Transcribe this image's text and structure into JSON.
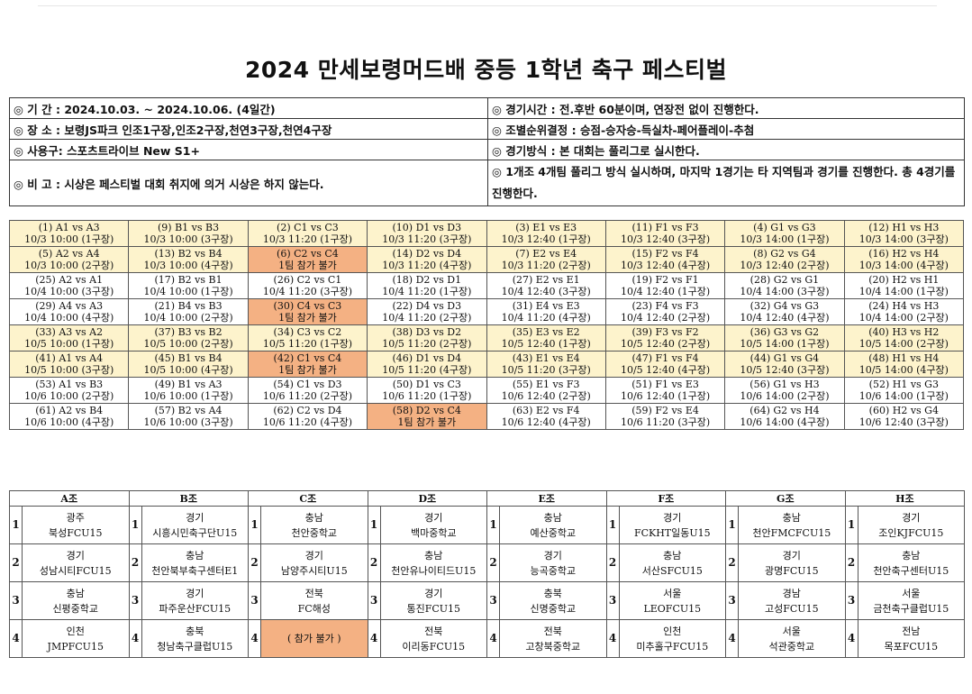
{
  "title": "2024 만세보령머드배 중등 1학년 축구 페스티벌",
  "info": {
    "period": "◎ 기 간 : 2024.10.03. ~ 2024.10.06. (4일간)",
    "venue": "◎ 장 소 : 보령JS파크 인조1구장,인조2구장,천연3구장,천연4구장",
    "ball": "◎ 사용구: 스포츠트라이브 New S1+",
    "note": "◎ 비 고 : 시상은 페스티벌 대회 취지에 의거 시상은 하지 않는다.",
    "match_time": "◎ 경기시간 : 전.후반 60분이며, 연장전 없이 진행한다.",
    "ranking": "◎ 조별순위결정 : 승점-승자승-득실차-페어플레이-추첨",
    "format": "◎ 경기방식 : 본 대회는 풀리그로 실시한다.",
    "group_rule": "◎ 1개조 4개팀 풀리그 방식 실시하며, 마지막 1경기는 타 지역팀과 경기를 진행한다. 총 4경기를 진행한다."
  },
  "schedule": [
    [
      {
        "l1": "(1) A1 vs A3",
        "l2": "10/3 10:00 (1구장)",
        "c": "y"
      },
      {
        "l1": "(9) B1 vs B3",
        "l2": "10/3 10:00 (3구장)",
        "c": "y"
      },
      {
        "l1": "(2) C1 vs C3",
        "l2": "10/3 11:20 (1구장)",
        "c": "y"
      },
      {
        "l1": "(10) D1 vs D3",
        "l2": "10/3 11:20 (3구장)",
        "c": "y"
      },
      {
        "l1": "(3) E1 vs E3",
        "l2": "10/3 12:40 (1구장)",
        "c": "y"
      },
      {
        "l1": "(11) F1 vs F3",
        "l2": "10/3 12:40 (3구장)",
        "c": "y"
      },
      {
        "l1": "(4) G1 vs G3",
        "l2": "10/3 14:00 (1구장)",
        "c": "y"
      },
      {
        "l1": "(12) H1 vs H3",
        "l2": "10/3 14:00 (3구장)",
        "c": "y"
      }
    ],
    [
      {
        "l1": "(5) A2 vs A4",
        "l2": "10/3 10:00 (2구장)",
        "c": "y"
      },
      {
        "l1": "(13) B2 vs B4",
        "l2": "10/3 10:00 (4구장)",
        "c": "y"
      },
      {
        "l1": "(6) C2 vs C4",
        "l2": "1팀 참가 불가",
        "c": "o"
      },
      {
        "l1": "(14) D2 vs D4",
        "l2": "10/3 11:20 (4구장)",
        "c": "y"
      },
      {
        "l1": "(7) E2 vs E4",
        "l2": "10/3 11:20 (2구장)",
        "c": "y"
      },
      {
        "l1": "(15) F2 vs F4",
        "l2": "10/3 12:40 (4구장)",
        "c": "y"
      },
      {
        "l1": "(8) G2 vs G4",
        "l2": "10/3 12:40 (2구장)",
        "c": "y"
      },
      {
        "l1": "(16) H2 vs H4",
        "l2": "10/3 14:00 (4구장)",
        "c": "y"
      }
    ],
    [
      {
        "l1": "(25) A2 vs A1",
        "l2": "10/4 10:00 (3구장)",
        "c": "w"
      },
      {
        "l1": "(17) B2 vs B1",
        "l2": "10/4 10:00 (1구장)",
        "c": "w"
      },
      {
        "l1": "(26) C2 vs C1",
        "l2": "10/4 11:20 (3구장)",
        "c": "w"
      },
      {
        "l1": "(18) D2 vs D1",
        "l2": "10/4 11:20 (1구장)",
        "c": "w"
      },
      {
        "l1": "(27) E2 vs E1",
        "l2": "10/4 12:40 (3구장)",
        "c": "w"
      },
      {
        "l1": "(19) F2 vs F1",
        "l2": "10/4 12:40 (1구장)",
        "c": "w"
      },
      {
        "l1": "(28) G2 vs G1",
        "l2": "10/4 14:00 (3구장)",
        "c": "w"
      },
      {
        "l1": "(20) H2 vs H1",
        "l2": "10/4 14:00 (1구장)",
        "c": "w"
      }
    ],
    [
      {
        "l1": "(29) A4 vs A3",
        "l2": "10/4 10:00 (4구장)",
        "c": "w"
      },
      {
        "l1": "(21) B4 vs B3",
        "l2": "10/4 10:00 (2구장)",
        "c": "w"
      },
      {
        "l1": "(30) C4 vs C3",
        "l2": "1팀 참가 불가",
        "c": "o"
      },
      {
        "l1": "(22) D4 vs D3",
        "l2": "10/4 11:20 (2구장)",
        "c": "w"
      },
      {
        "l1": "(31) E4 vs E3",
        "l2": "10/4 11:20 (4구장)",
        "c": "w"
      },
      {
        "l1": "(23) F4 vs F3",
        "l2": "10/4 12:40 (2구장)",
        "c": "w"
      },
      {
        "l1": "(32) G4 vs G3",
        "l2": "10/4 12:40 (4구장)",
        "c": "w"
      },
      {
        "l1": "(24) H4 vs H3",
        "l2": "10/4 14:00 (2구장)",
        "c": "w"
      }
    ],
    [
      {
        "l1": "(33) A3 vs A2",
        "l2": "10/5 10:00 (1구장)",
        "c": "y"
      },
      {
        "l1": "(37) B3 vs B2",
        "l2": "10/5 10:00 (2구장)",
        "c": "y"
      },
      {
        "l1": "(34) C3 vs C2",
        "l2": "10/5 11:20 (1구장)",
        "c": "y"
      },
      {
        "l1": "(38) D3 vs D2",
        "l2": "10/5 11:20 (2구장)",
        "c": "y"
      },
      {
        "l1": "(35) E3 vs E2",
        "l2": "10/5 12:40 (1구장)",
        "c": "y"
      },
      {
        "l1": "(39) F3 vs F2",
        "l2": "10/5 12:40 (2구장)",
        "c": "y"
      },
      {
        "l1": "(36) G3 vs G2",
        "l2": "10/5 14:00 (1구장)",
        "c": "y"
      },
      {
        "l1": "(40) H3 vs H2",
        "l2": "10/5 14:00 (2구장)",
        "c": "y"
      }
    ],
    [
      {
        "l1": "(41) A1 vs A4",
        "l2": "10/5 10:00 (3구장)",
        "c": "y"
      },
      {
        "l1": "(45) B1 vs B4",
        "l2": "10/5 10:00 (4구장)",
        "c": "y"
      },
      {
        "l1": "(42) C1 vs C4",
        "l2": "1팀 참가 불가",
        "c": "o"
      },
      {
        "l1": "(46) D1 vs D4",
        "l2": "10/5 11:20 (4구장)",
        "c": "y"
      },
      {
        "l1": "(43) E1 vs E4",
        "l2": "10/5 11:20 (3구장)",
        "c": "y"
      },
      {
        "l1": "(47) F1 vs F4",
        "l2": "10/5 12:40 (4구장)",
        "c": "y"
      },
      {
        "l1": "(44) G1 vs G4",
        "l2": "10/5 12:40 (3구장)",
        "c": "y"
      },
      {
        "l1": "(48) H1 vs H4",
        "l2": "10/5 14:00 (4구장)",
        "c": "y"
      }
    ],
    [
      {
        "l1": "(53) A1 vs B3",
        "l2": "10/6 10:00 (2구장)",
        "c": "w"
      },
      {
        "l1": "(49) B1 vs A3",
        "l2": "10/6 10:00 (1구장)",
        "c": "w"
      },
      {
        "l1": "(54) C1 vs D3",
        "l2": "10/6 11:20 (2구장)",
        "c": "w"
      },
      {
        "l1": "(50) D1 vs C3",
        "l2": "10/6 11:20 (1구장)",
        "c": "w"
      },
      {
        "l1": "(55) E1 vs F3",
        "l2": "10/6 12:40 (2구장)",
        "c": "w"
      },
      {
        "l1": "(51) F1 vs E3",
        "l2": "10/6 12:40 (1구장)",
        "c": "w"
      },
      {
        "l1": "(56) G1 vs H3",
        "l2": "10/6 14:00 (2구장)",
        "c": "w"
      },
      {
        "l1": "(52) H1 vs G3",
        "l2": "10/6 14:00 (1구장)",
        "c": "w"
      }
    ],
    [
      {
        "l1": "(61) A2 vs B4",
        "l2": "10/6 10:00 (4구장)",
        "c": "w"
      },
      {
        "l1": "(57) B2 vs A4",
        "l2": "10/6 10:00 (3구장)",
        "c": "w"
      },
      {
        "l1": "(62) C2 vs D4",
        "l2": "10/6 11:20 (4구장)",
        "c": "w"
      },
      {
        "l1": "(58) D2 vs C4",
        "l2": "1팀 참가 불가",
        "c": "o"
      },
      {
        "l1": "(63) E2 vs F4",
        "l2": "10/6 12:40 (4구장)",
        "c": "w"
      },
      {
        "l1": "(59) F2 vs E4",
        "l2": "10/6 11:20 (3구장)",
        "c": "w"
      },
      {
        "l1": "(64) G2 vs H4",
        "l2": "10/6 14:00 (4구장)",
        "c": "w"
      },
      {
        "l1": "(60) H2 vs G4",
        "l2": "10/6 12:40 (3구장)",
        "c": "w"
      }
    ]
  ],
  "groups": [
    "A조",
    "B조",
    "C조",
    "D조",
    "E조",
    "F조",
    "G조",
    "H조"
  ],
  "teams": [
    [
      {
        "n": "1",
        "r": "광주",
        "t": "북성FCU15"
      },
      {
        "n": "1",
        "r": "경기",
        "t": "시흥시민축구단U15"
      },
      {
        "n": "1",
        "r": "충남",
        "t": "천안중학교"
      },
      {
        "n": "1",
        "r": "경기",
        "t": "백마중학교"
      },
      {
        "n": "1",
        "r": "충남",
        "t": "예산중학교"
      },
      {
        "n": "1",
        "r": "경기",
        "t": "FCKHT일동U15"
      },
      {
        "n": "1",
        "r": "충남",
        "t": "천안FMCFCU15"
      },
      {
        "n": "1",
        "r": "경기",
        "t": "조인KJFCU15"
      }
    ],
    [
      {
        "n": "2",
        "r": "경기",
        "t": "성남시티FCU15"
      },
      {
        "n": "2",
        "r": "충남",
        "t": "천안북부축구센터E1"
      },
      {
        "n": "2",
        "r": "경기",
        "t": "남양주시티U15"
      },
      {
        "n": "2",
        "r": "충남",
        "t": "천안유나이티드U15"
      },
      {
        "n": "2",
        "r": "경기",
        "t": "능곡중학교"
      },
      {
        "n": "2",
        "r": "충남",
        "t": "서산SFCU15"
      },
      {
        "n": "2",
        "r": "경기",
        "t": "광명FCU15"
      },
      {
        "n": "2",
        "r": "충남",
        "t": "천안축구센터U15"
      }
    ],
    [
      {
        "n": "3",
        "r": "충남",
        "t": "신평중학교"
      },
      {
        "n": "3",
        "r": "경기",
        "t": "파주운산FCU15"
      },
      {
        "n": "3",
        "r": "전북",
        "t": "FC해성"
      },
      {
        "n": "3",
        "r": "경기",
        "t": "통진FCU15"
      },
      {
        "n": "3",
        "r": "충북",
        "t": "신명중학교"
      },
      {
        "n": "3",
        "r": "서울",
        "t": "LEOFCU15"
      },
      {
        "n": "3",
        "r": "경남",
        "t": "고성FCU15"
      },
      {
        "n": "3",
        "r": "서울",
        "t": "금천축구클럽U15"
      }
    ],
    [
      {
        "n": "4",
        "r": "인천",
        "t": "JMPFCU15"
      },
      {
        "n": "4",
        "r": "충북",
        "t": "청남축구클럽U15"
      },
      {
        "n": "4",
        "r": "",
        "t": "( 참가 불가 )",
        "c": "o"
      },
      {
        "n": "4",
        "r": "전북",
        "t": "이리동FCU15"
      },
      {
        "n": "4",
        "r": "전북",
        "t": "고창북중학교"
      },
      {
        "n": "4",
        "r": "인천",
        "t": "미추홀구FCU15"
      },
      {
        "n": "4",
        "r": "서울",
        "t": "석관중학교"
      },
      {
        "n": "4",
        "r": "전남",
        "t": "목포FCU15"
      }
    ]
  ]
}
